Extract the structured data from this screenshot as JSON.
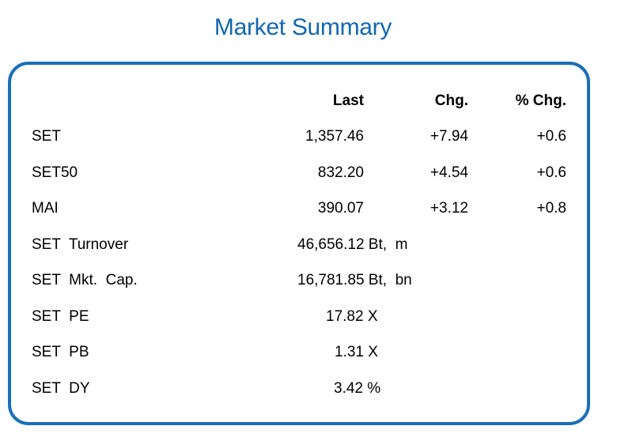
{
  "title": "Market Summary",
  "headers": {
    "last": "Last",
    "chg": "Chg.",
    "pct": "% Chg."
  },
  "indices": [
    {
      "name": "SET",
      "last": "1,357.46",
      "chg": "+7.94",
      "pct": "+0.6"
    },
    {
      "name": "SET50",
      "last": "832.20",
      "chg": "+4.54",
      "pct": "+0.6"
    },
    {
      "name": "MAI",
      "last": "390.07",
      "chg": "+3.12",
      "pct": "+0.8"
    }
  ],
  "stats": [
    {
      "name": "SET  Turnover",
      "value": "46,656.12 Bt,  m"
    },
    {
      "name": "SET  Mkt.  Cap.",
      "value": "16,781.85 Bt,  bn"
    },
    {
      "name": "SET  PE",
      "value": "17.82 X"
    },
    {
      "name": "SET  PB",
      "value": "1.31 X"
    },
    {
      "name": "SET  DY",
      "value": "3.42 %"
    }
  ],
  "colors": {
    "accent": "#1a6fb8",
    "title": "#1266b0"
  }
}
